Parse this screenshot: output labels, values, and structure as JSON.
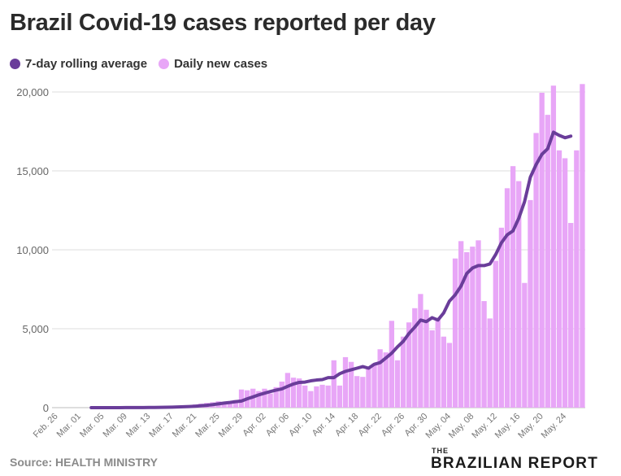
{
  "title": "Brazil Covid-19 cases reported per day",
  "legend": [
    {
      "label": "7-day rolling average",
      "color": "#6a3d9a"
    },
    {
      "label": "Daily new cases",
      "color": "#e8a6f7"
    }
  ],
  "source": "Source: HEALTH MINISTRY",
  "logo": {
    "the": "THE",
    "name": "BRAZILIAN REPORT"
  },
  "chart_data": {
    "type": "bar",
    "title": "Brazil Covid-19 cases reported per day",
    "xlabel": "",
    "ylabel": "",
    "ylim": [
      0,
      20000
    ],
    "yticks": [
      0,
      5000,
      10000,
      15000,
      20000
    ],
    "ytick_labels": [
      "0",
      "5,000",
      "10,000",
      "15,000",
      "20,000"
    ],
    "grid": true,
    "legend_position": "top-left",
    "xtick_labels": [
      "Feb. 26",
      "Mar. 01",
      "Mar. 05",
      "Mar. 09",
      "Mar. 13",
      "Mar. 17",
      "Mar. 21",
      "Mar. 25",
      "Mar. 29",
      "Apr. 02",
      "Apr. 06",
      "Apr. 10",
      "Apr. 14",
      "Apr. 18",
      "Apr. 22",
      "Apr. 26",
      "Apr. 30",
      "May. 04",
      "May. 08",
      "May. 12",
      "May. 16",
      "May. 20",
      "May. 24"
    ],
    "tick_every": 4,
    "colors": {
      "bars": "#e8a6f7",
      "line": "#6a3d9a"
    },
    "series": [
      {
        "name": "Daily new cases",
        "kind": "bar",
        "values": [
          0,
          0,
          0,
          0,
          0,
          0,
          0,
          0,
          0,
          1,
          3,
          5,
          5,
          10,
          7,
          15,
          20,
          25,
          35,
          60,
          80,
          110,
          130,
          150,
          200,
          250,
          300,
          340,
          400,
          350,
          410,
          480,
          1150,
          1100,
          1200,
          1050,
          1200,
          900,
          1300,
          1650,
          2200,
          1900,
          1850,
          1400,
          1050,
          1350,
          1450,
          1400,
          3000,
          1400,
          3200,
          2900,
          2000,
          1950,
          2500,
          2800,
          3700,
          3500,
          5500,
          3000,
          4500,
          5400,
          6300,
          7200,
          6200,
          4900,
          5700,
          4500,
          4100,
          9450,
          10550,
          9850,
          10200,
          10600,
          6750,
          5650,
          9300,
          11400,
          13900,
          15300,
          14350,
          7900,
          13150,
          17400,
          19950,
          18550,
          20400,
          16300,
          15800,
          11700,
          16300,
          20500
        ]
      },
      {
        "name": "7-day rolling average",
        "kind": "line",
        "values": [
          null,
          null,
          null,
          null,
          null,
          null,
          0,
          0,
          1,
          1,
          2,
          3,
          4,
          5,
          7,
          9,
          11,
          15,
          19,
          24,
          32,
          43,
          57,
          73,
          93,
          120,
          150,
          190,
          240,
          290,
          330,
          380,
          420,
          560,
          680,
          810,
          920,
          1020,
          1110,
          1190,
          1350,
          1500,
          1600,
          1620,
          1700,
          1750,
          1780,
          1900,
          1900,
          2150,
          2300,
          2400,
          2500,
          2600,
          2500,
          2750,
          2850,
          3150,
          3450,
          3850,
          4200,
          4700,
          5100,
          5550,
          5450,
          5700,
          5550,
          6000,
          6750,
          7150,
          7700,
          8500,
          8850,
          9000,
          9000,
          9100,
          9700,
          10450,
          10950,
          11200,
          12000,
          13050,
          14600,
          15400,
          16050,
          16400,
          17450,
          17250,
          17100,
          17200
        ]
      }
    ]
  }
}
